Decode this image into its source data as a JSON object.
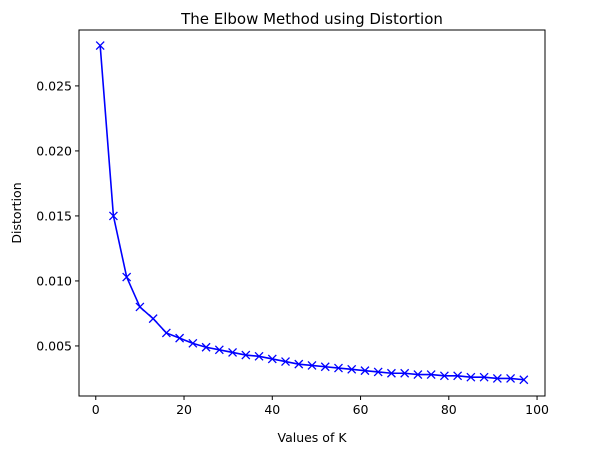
{
  "chart_data": {
    "type": "line",
    "title": "The Elbow Method using Distortion",
    "xlabel": "Values of K",
    "ylabel": "Distortion",
    "xlim": [
      -3.8,
      101.8
    ],
    "ylim": [
      0.00115,
      0.0293
    ],
    "xticks": [
      0,
      20,
      40,
      60,
      80,
      100
    ],
    "yticks": [
      0.005,
      0.01,
      0.015,
      0.02,
      0.025
    ],
    "ytick_labels": [
      "0.005",
      "0.010",
      "0.015",
      "0.020",
      "0.025"
    ],
    "grid": false,
    "color": "#0000ff",
    "marker": "x",
    "x": [
      1,
      4,
      7,
      10,
      13,
      16,
      19,
      22,
      25,
      28,
      31,
      34,
      37,
      40,
      43,
      46,
      49,
      52,
      55,
      58,
      61,
      64,
      67,
      70,
      73,
      76,
      79,
      82,
      85,
      88,
      91,
      94,
      97
    ],
    "y": [
      0.0281,
      0.015,
      0.0103,
      0.008,
      0.0071,
      0.006,
      0.0056,
      0.0052,
      0.0049,
      0.0047,
      0.0045,
      0.0043,
      0.0042,
      0.004,
      0.0038,
      0.0036,
      0.0035,
      0.0034,
      0.0033,
      0.0032,
      0.0031,
      0.003,
      0.0029,
      0.0029,
      0.0028,
      0.0028,
      0.0027,
      0.0027,
      0.0026,
      0.0026,
      0.0025,
      0.0025,
      0.0024
    ]
  }
}
